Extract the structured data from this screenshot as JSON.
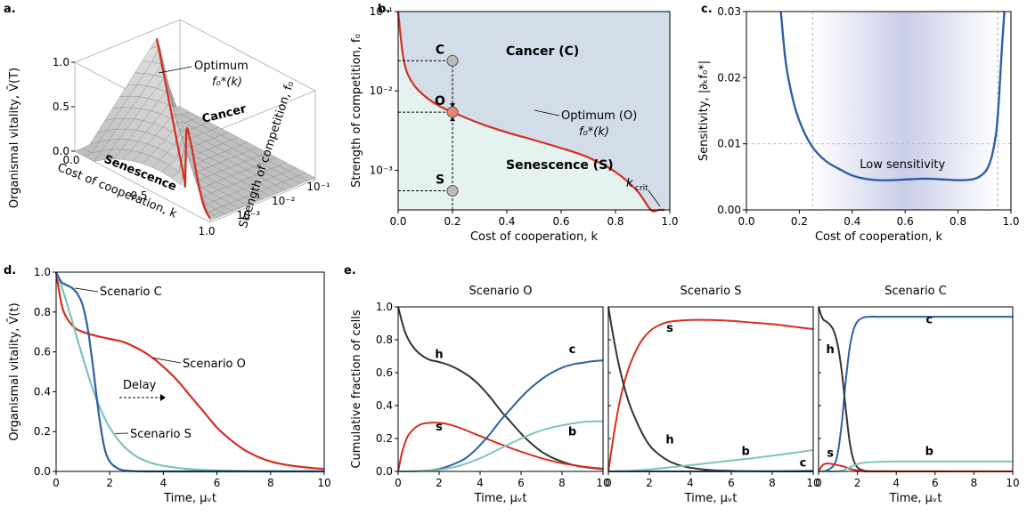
{
  "figure": {
    "panel_labels": [
      "a.",
      "b.",
      "c.",
      "d.",
      "e."
    ]
  },
  "colors": {
    "red": "#d62d20",
    "blue": "#2e5fa6",
    "teal": "#7cc4bb",
    "dark": "#333333",
    "cancer_region": "#d2dde9",
    "senescence_region": "#e4f2f0",
    "grey_point": "#bbbbbb",
    "optimum_point": "#f08070"
  },
  "chart_data": [
    {
      "panel": "a.",
      "type": "surface",
      "zlabel": "Organismal vitality, V̄(T)",
      "xlabel": "Cost of cooperation, k",
      "ylabel": "Strength of competition, f₀",
      "z_ticks": [
        "0.0",
        "0.5",
        "1.0"
      ],
      "x_ticks": [
        "0.0",
        "0.5",
        "1.0"
      ],
      "y_ticks": [
        "10⁻¹",
        "10⁻²",
        "10⁻³"
      ],
      "annotations": [
        "Optimum",
        "f₀*(k)",
        "Cancer",
        "Senescence"
      ]
    },
    {
      "panel": "b.",
      "type": "area",
      "xlabel": "Cost of cooperation, k",
      "ylabel": "Strength of competition, f₀",
      "xlim": [
        0,
        1
      ],
      "ylim_log10": [
        -3.5,
        -1
      ],
      "y_scale": "log",
      "x_ticks": [
        "0.0",
        "0.2",
        "0.4",
        "0.6",
        "0.8",
        "1.0"
      ],
      "y_ticks": [
        "10⁻¹",
        "10⁻²",
        "10⁻³"
      ],
      "regions": [
        "Cancer (C)",
        "Senescence (S)"
      ],
      "curve_label": [
        "Optimum (O)",
        "f₀*(k)"
      ],
      "kcrit_label": "k",
      "kcrit_sub": "crit",
      "curve": {
        "k": [
          0.0,
          0.02,
          0.05,
          0.1,
          0.15,
          0.2,
          0.3,
          0.4,
          0.5,
          0.6,
          0.7,
          0.8,
          0.88,
          0.93,
          0.96,
          0.98
        ],
        "f0": [
          0.1,
          0.025,
          0.013,
          0.0085,
          0.0065,
          0.0054,
          0.0039,
          0.003,
          0.0024,
          0.0019,
          0.00145,
          0.00095,
          0.00055,
          0.00028,
          0.00012,
          4e-05
        ]
      },
      "points": [
        {
          "name": "C",
          "k": 0.2,
          "f0": 0.024
        },
        {
          "name": "O",
          "k": 0.2,
          "f0": 0.0054
        },
        {
          "name": "S",
          "k": 0.2,
          "f0": 0.00055
        }
      ]
    },
    {
      "panel": "c.",
      "type": "line",
      "xlabel": "Cost of cooperation, k",
      "ylabel": "Sensitivity, |∂ₖf₀*|",
      "xlim": [
        0,
        1
      ],
      "ylim": [
        0,
        0.03
      ],
      "x_ticks": [
        "0.0",
        "0.2",
        "0.4",
        "0.6",
        "0.8",
        "1.0"
      ],
      "y_ticks": [
        "0.00",
        "0.01",
        "0.02",
        "0.03"
      ],
      "annotation": "Low sensitivity",
      "threshold": 0.01,
      "low_sensitivity_range": [
        0.25,
        0.95
      ],
      "x": [
        0.13,
        0.15,
        0.18,
        0.21,
        0.25,
        0.3,
        0.35,
        0.4,
        0.45,
        0.5,
        0.55,
        0.6,
        0.65,
        0.7,
        0.75,
        0.8,
        0.85,
        0.88,
        0.91,
        0.93,
        0.945,
        0.955,
        0.965,
        0.975
      ],
      "y": [
        0.03,
        0.022,
        0.016,
        0.0125,
        0.0095,
        0.0074,
        0.0062,
        0.0052,
        0.0047,
        0.0045,
        0.0045,
        0.0046,
        0.0047,
        0.0047,
        0.0046,
        0.0045,
        0.0046,
        0.005,
        0.0062,
        0.0085,
        0.012,
        0.017,
        0.024,
        0.03
      ]
    },
    {
      "panel": "d.",
      "type": "line",
      "xlabel": "Time, μᵥt",
      "ylabel": "Organismal vitality, V̄(t)",
      "xlim": [
        0,
        10
      ],
      "ylim": [
        0,
        1
      ],
      "x_ticks": [
        "0",
        "2",
        "4",
        "6",
        "8",
        "10"
      ],
      "y_ticks": [
        "0.0",
        "0.2",
        "0.4",
        "0.6",
        "0.8",
        "1.0"
      ],
      "annotation": "Delay",
      "series": [
        {
          "name": "Scenario O",
          "color": "red",
          "x": [
            0,
            0.2,
            0.4,
            0.7,
            1.0,
            1.5,
            2.0,
            2.5,
            3.0,
            3.5,
            4.0,
            4.5,
            5.0,
            5.5,
            6.0,
            6.5,
            7.0,
            7.5,
            8.0,
            8.5,
            9.0,
            9.5,
            10
          ],
          "y": [
            1.0,
            0.84,
            0.77,
            0.72,
            0.7,
            0.68,
            0.665,
            0.65,
            0.62,
            0.58,
            0.525,
            0.46,
            0.38,
            0.3,
            0.22,
            0.16,
            0.11,
            0.075,
            0.05,
            0.035,
            0.025,
            0.018,
            0.012
          ]
        },
        {
          "name": "Scenario S",
          "color": "teal",
          "x": [
            0,
            0.2,
            0.5,
            0.8,
            1.0,
            1.3,
            1.6,
            2.0,
            2.5,
            3.0,
            3.5,
            4.0,
            5.0,
            6.0,
            7.0,
            8.0,
            10
          ],
          "y": [
            1.0,
            0.93,
            0.8,
            0.66,
            0.57,
            0.44,
            0.33,
            0.22,
            0.13,
            0.075,
            0.045,
            0.028,
            0.011,
            0.005,
            0.002,
            0.001,
            0.0
          ]
        },
        {
          "name": "Scenario C",
          "color": "blue",
          "x": [
            0,
            0.2,
            0.4,
            0.6,
            0.8,
            1.0,
            1.2,
            1.4,
            1.6,
            1.8,
            2.0,
            2.3,
            2.6,
            3.0,
            3.5,
            4.0,
            10
          ],
          "y": [
            1.0,
            0.95,
            0.935,
            0.92,
            0.89,
            0.83,
            0.7,
            0.5,
            0.28,
            0.12,
            0.05,
            0.015,
            0.004,
            0.001,
            0.0,
            0.0,
            0.0
          ]
        }
      ]
    },
    {
      "panel": "e.",
      "type": "line",
      "ylabel": "Cumulative fraction of cells",
      "xlabel": "Time, μᵥt",
      "ylim": [
        0,
        1
      ],
      "xlim": [
        0,
        10
      ],
      "x_ticks": [
        "0",
        "2",
        "4",
        "6",
        "8",
        "10"
      ],
      "y_ticks": [
        "0.0",
        "0.2",
        "0.4",
        "0.6",
        "0.8",
        "1.0"
      ],
      "subplots": [
        {
          "title": "Scenario O",
          "series": [
            {
              "name": "h",
              "color": "dark",
              "label_at": [
                2,
                0.69
              ],
              "x": [
                0,
                0.3,
                0.6,
                1.0,
                1.5,
                2.0,
                2.5,
                3.0,
                3.5,
                4.0,
                4.5,
                5.0,
                5.5,
                6.0,
                6.5,
                7.0,
                7.5,
                8.0,
                8.5,
                9.0,
                9.5,
                10
              ],
              "y": [
                1.0,
                0.86,
                0.78,
                0.72,
                0.68,
                0.665,
                0.645,
                0.615,
                0.575,
                0.52,
                0.45,
                0.37,
                0.3,
                0.23,
                0.17,
                0.12,
                0.085,
                0.06,
                0.04,
                0.028,
                0.02,
                0.014
              ]
            },
            {
              "name": "s",
              "color": "red",
              "label_at": [
                2,
                0.25
              ],
              "x": [
                0,
                0.2,
                0.5,
                1.0,
                1.5,
                2.0,
                2.5,
                3.0,
                4.0,
                5.0,
                6.0,
                7.0,
                8.0,
                9.0,
                10
              ],
              "y": [
                0.0,
                0.12,
                0.22,
                0.28,
                0.295,
                0.295,
                0.285,
                0.265,
                0.215,
                0.165,
                0.12,
                0.08,
                0.05,
                0.03,
                0.017
              ]
            },
            {
              "name": "c",
              "color": "blue",
              "label_at": [
                8.5,
                0.72
              ],
              "x": [
                0,
                1,
                2,
                3,
                3.5,
                4,
                4.5,
                5,
                5.5,
                6,
                6.5,
                7,
                7.5,
                8,
                8.5,
                9,
                9.5,
                10
              ],
              "y": [
                0,
                0.002,
                0.015,
                0.06,
                0.1,
                0.16,
                0.23,
                0.31,
                0.38,
                0.45,
                0.51,
                0.56,
                0.6,
                0.63,
                0.65,
                0.66,
                0.67,
                0.675
              ]
            },
            {
              "name": "b",
              "color": "teal",
              "label_at": [
                8.5,
                0.22
              ],
              "x": [
                0,
                1,
                2,
                3,
                4,
                5,
                6,
                7,
                8,
                9,
                10
              ],
              "y": [
                0,
                0.002,
                0.01,
                0.035,
                0.08,
                0.14,
                0.2,
                0.25,
                0.28,
                0.3,
                0.305
              ]
            }
          ]
        },
        {
          "title": "Scenario S",
          "series": [
            {
              "name": "s",
              "color": "red",
              "label_at": [
                3,
                0.85
              ],
              "x": [
                0,
                0.3,
                0.6,
                1.0,
                1.5,
                2.0,
                2.5,
                3.0,
                4.0,
                5.0,
                6.0,
                7.0,
                8.0,
                9.0,
                10
              ],
              "y": [
                0.0,
                0.25,
                0.45,
                0.63,
                0.77,
                0.85,
                0.89,
                0.91,
                0.92,
                0.92,
                0.915,
                0.905,
                0.895,
                0.88,
                0.865
              ]
            },
            {
              "name": "h",
              "color": "dark",
              "label_at": [
                3,
                0.17
              ],
              "x": [
                0,
                0.3,
                0.6,
                1.0,
                1.5,
                2.0,
                2.5,
                3.0,
                3.5,
                4.0,
                5.0,
                6.0,
                7.0,
                8.0,
                10
              ],
              "y": [
                1.0,
                0.78,
                0.6,
                0.42,
                0.27,
                0.16,
                0.1,
                0.06,
                0.037,
                0.022,
                0.008,
                0.003,
                0.001,
                0.0,
                0.0
              ]
            },
            {
              "name": "b",
              "color": "teal",
              "label_at": [
                6.7,
                0.1
              ],
              "x": [
                0,
                1,
                2,
                3,
                4,
                5,
                6,
                7,
                8,
                9,
                10
              ],
              "y": [
                0,
                0.003,
                0.012,
                0.025,
                0.038,
                0.052,
                0.066,
                0.08,
                0.095,
                0.112,
                0.13
              ]
            },
            {
              "name": "c",
              "color": "blue",
              "label_at": [
                9.5,
                0.03
              ],
              "x": [
                0,
                5,
                8,
                9,
                10
              ],
              "y": [
                0,
                0.0,
                0.001,
                0.002,
                0.004
              ]
            }
          ]
        },
        {
          "title": "Scenario C",
          "series": [
            {
              "name": "c",
              "color": "blue",
              "label_at": [
                5.7,
                0.9
              ],
              "x": [
                0,
                0.4,
                0.8,
                1.0,
                1.2,
                1.4,
                1.6,
                1.8,
                2.0,
                2.3,
                2.6,
                3.0,
                4.0,
                10
              ],
              "y": [
                0,
                0.005,
                0.04,
                0.12,
                0.3,
                0.55,
                0.75,
                0.86,
                0.91,
                0.935,
                0.94,
                0.94,
                0.94,
                0.94
              ]
            },
            {
              "name": "h",
              "color": "dark",
              "label_at": [
                0.6,
                0.72
              ],
              "x": [
                0,
                0.2,
                0.4,
                0.6,
                0.8,
                1.0,
                1.2,
                1.4,
                1.6,
                1.8,
                2.0,
                2.3,
                2.6,
                3.0,
                10
              ],
              "y": [
                1.0,
                0.93,
                0.91,
                0.89,
                0.85,
                0.76,
                0.6,
                0.38,
                0.18,
                0.07,
                0.025,
                0.006,
                0.001,
                0.0,
                0.0
              ]
            },
            {
              "name": "s",
              "color": "red",
              "label_at": [
                0.6,
                0.09
              ],
              "x": [
                0,
                0.15,
                0.3,
                0.5,
                0.7,
                0.9,
                1.1,
                1.3,
                1.5,
                1.8,
                2.2,
                3.0,
                10
              ],
              "y": [
                0,
                0.03,
                0.045,
                0.048,
                0.045,
                0.04,
                0.035,
                0.03,
                0.02,
                0.01,
                0.004,
                0.001,
                0.0
              ]
            },
            {
              "name": "b",
              "color": "teal",
              "label_at": [
                5.7,
                0.1
              ],
              "x": [
                0,
                1.0,
                1.3,
                1.6,
                2.0,
                2.5,
                3.0,
                4.0,
                10
              ],
              "y": [
                0,
                0.001,
                0.008,
                0.025,
                0.045,
                0.055,
                0.058,
                0.06,
                0.06
              ]
            }
          ]
        }
      ]
    }
  ]
}
